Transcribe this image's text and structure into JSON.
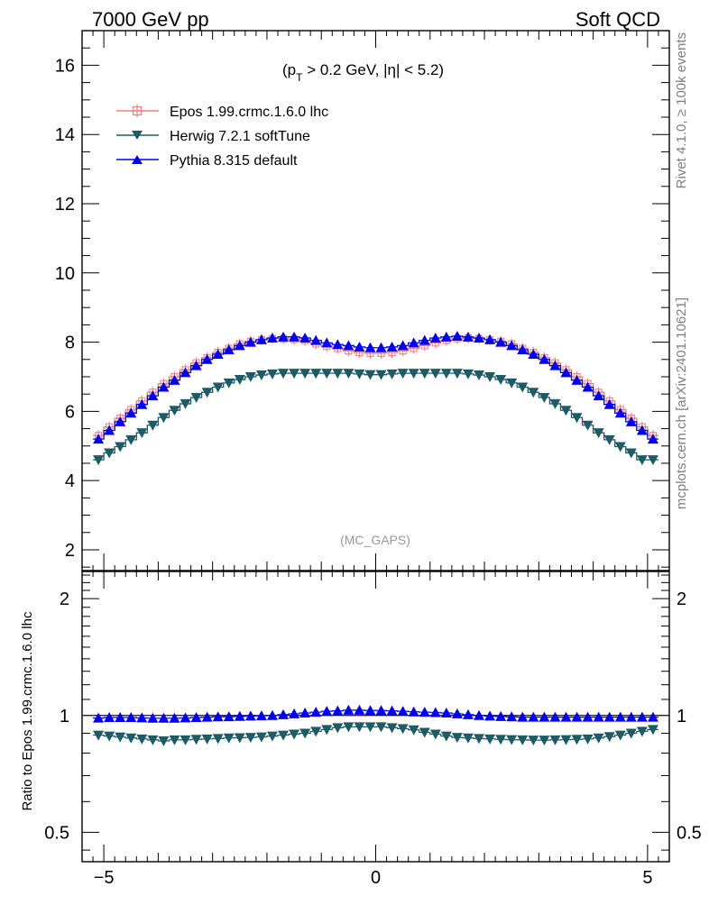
{
  "header": {
    "left_title": "7000 GeV pp",
    "right_title": "Soft QCD"
  },
  "side_labels": {
    "rivet": "Rivet 4.1.0, ≥ 100k events",
    "mcplots": "mcplots.cern.ch [arXiv:2401.10621]"
  },
  "chart_data": {
    "type": "line",
    "cut_label_parts": [
      "(p",
      "T",
      " > 0.2 GeV, |η| < 5.2)"
    ],
    "watermark": "(MC_GAPS)",
    "main": {
      "ylim": [
        1.4,
        17.0
      ],
      "yticks": [
        "2",
        "4",
        "6",
        "8",
        "10",
        "12",
        "14",
        "16"
      ],
      "ytick_values": [
        2,
        4,
        6,
        8,
        10,
        12,
        14,
        16
      ]
    },
    "ratio": {
      "ylabel": "Ratio to Epos 1.99.crmc.1.6.0 lhc",
      "ylim": [
        0.42,
        2.35
      ],
      "log": true,
      "yticks": [
        "0.5",
        "1",
        "2"
      ],
      "ytick_values": [
        0.5,
        1,
        2
      ]
    },
    "xlim": [
      -5.4,
      5.4
    ],
    "xticks": [
      "−5",
      "0",
      "5"
    ],
    "xtick_values": [
      -5,
      0,
      5
    ],
    "x": [
      -5.1,
      -4.9,
      -4.7,
      -4.5,
      -4.3,
      -4.1,
      -3.9,
      -3.7,
      -3.5,
      -3.3,
      -3.1,
      -2.9,
      -2.7,
      -2.5,
      -2.3,
      -2.1,
      -1.9,
      -1.7,
      -1.5,
      -1.3,
      -1.1,
      -0.9,
      -0.7,
      -0.5,
      -0.3,
      -0.1,
      0.1,
      0.3,
      0.5,
      0.7,
      0.9,
      1.1,
      1.3,
      1.5,
      1.7,
      1.9,
      2.1,
      2.3,
      2.5,
      2.7,
      2.9,
      3.1,
      3.3,
      3.5,
      3.7,
      3.9,
      4.1,
      4.3,
      4.5,
      4.7,
      4.9,
      5.1
    ],
    "series": [
      {
        "name": "Epos 1.99.crmc.1.6.0 lhc",
        "color": "#f08080",
        "marker": "open-cross",
        "values": [
          5.3,
          5.55,
          5.8,
          6.05,
          6.3,
          6.55,
          6.8,
          7.0,
          7.2,
          7.4,
          7.55,
          7.7,
          7.82,
          7.95,
          8.02,
          8.07,
          8.1,
          8.1,
          8.08,
          8.05,
          7.95,
          7.88,
          7.82,
          7.75,
          7.7,
          7.68,
          7.68,
          7.7,
          7.75,
          7.82,
          7.9,
          7.98,
          8.05,
          8.1,
          8.12,
          8.1,
          8.07,
          8.02,
          7.95,
          7.82,
          7.7,
          7.55,
          7.4,
          7.2,
          7.0,
          6.8,
          6.55,
          6.3,
          6.05,
          5.8,
          5.55,
          5.3
        ]
      },
      {
        "name": "Herwig 7.2.1 softTune",
        "color": "#1e5b66",
        "marker": "down-triangle",
        "values": [
          4.6,
          4.8,
          4.98,
          5.18,
          5.38,
          5.6,
          5.82,
          6.03,
          6.22,
          6.4,
          6.55,
          6.7,
          6.82,
          6.92,
          7.0,
          7.05,
          7.08,
          7.1,
          7.1,
          7.1,
          7.1,
          7.1,
          7.1,
          7.1,
          7.08,
          7.06,
          7.06,
          7.08,
          7.1,
          7.1,
          7.1,
          7.1,
          7.1,
          7.1,
          7.08,
          7.05,
          7.0,
          6.92,
          6.82,
          6.7,
          6.55,
          6.4,
          6.22,
          6.03,
          5.82,
          5.6,
          5.38,
          5.18,
          4.98,
          4.8,
          4.6,
          4.6
        ]
      },
      {
        "name": "Pythia 8.315 default",
        "color": "#0000ee",
        "marker": "up-triangle",
        "values": [
          5.2,
          5.45,
          5.7,
          5.95,
          6.2,
          6.45,
          6.7,
          6.9,
          7.12,
          7.32,
          7.5,
          7.65,
          7.78,
          7.9,
          8.0,
          8.07,
          8.12,
          8.15,
          8.15,
          8.12,
          8.05,
          7.98,
          7.93,
          7.9,
          7.86,
          7.84,
          7.84,
          7.86,
          7.9,
          7.98,
          8.05,
          8.12,
          8.15,
          8.17,
          8.15,
          8.12,
          8.07,
          8.0,
          7.9,
          7.78,
          7.65,
          7.5,
          7.32,
          7.12,
          6.9,
          6.7,
          6.45,
          6.2,
          5.95,
          5.7,
          5.45,
          5.2
        ]
      }
    ],
    "ratio_series": [
      {
        "name": "Herwig 7.2.1 softTune / Epos",
        "values": [
          0.89,
          0.885,
          0.88,
          0.875,
          0.87,
          0.865,
          0.86,
          0.865,
          0.865,
          0.868,
          0.87,
          0.872,
          0.875,
          0.876,
          0.878,
          0.88,
          0.885,
          0.89,
          0.895,
          0.9,
          0.91,
          0.92,
          0.93,
          0.935,
          0.935,
          0.935,
          0.935,
          0.93,
          0.925,
          0.918,
          0.905,
          0.895,
          0.885,
          0.878,
          0.875,
          0.872,
          0.87,
          0.868,
          0.866,
          0.865,
          0.864,
          0.864,
          0.865,
          0.866,
          0.868,
          0.87,
          0.875,
          0.882,
          0.89,
          0.9,
          0.91,
          0.92
        ]
      },
      {
        "name": "Pythia 8.315 default / Epos",
        "values": [
          0.985,
          0.988,
          0.988,
          0.988,
          0.986,
          0.984,
          0.984,
          0.984,
          0.986,
          0.988,
          0.99,
          0.992,
          0.993,
          0.995,
          0.997,
          0.998,
          1.0,
          1.005,
          1.01,
          1.015,
          1.02,
          1.025,
          1.028,
          1.032,
          1.032,
          1.03,
          1.03,
          1.028,
          1.025,
          1.022,
          1.02,
          1.018,
          1.015,
          1.01,
          1.005,
          1.0,
          0.997,
          0.994,
          0.992,
          0.99,
          0.99,
          0.99,
          0.99,
          0.99,
          0.99,
          0.99,
          0.99,
          0.99,
          0.99,
          0.99,
          0.99,
          0.99
        ]
      }
    ]
  }
}
